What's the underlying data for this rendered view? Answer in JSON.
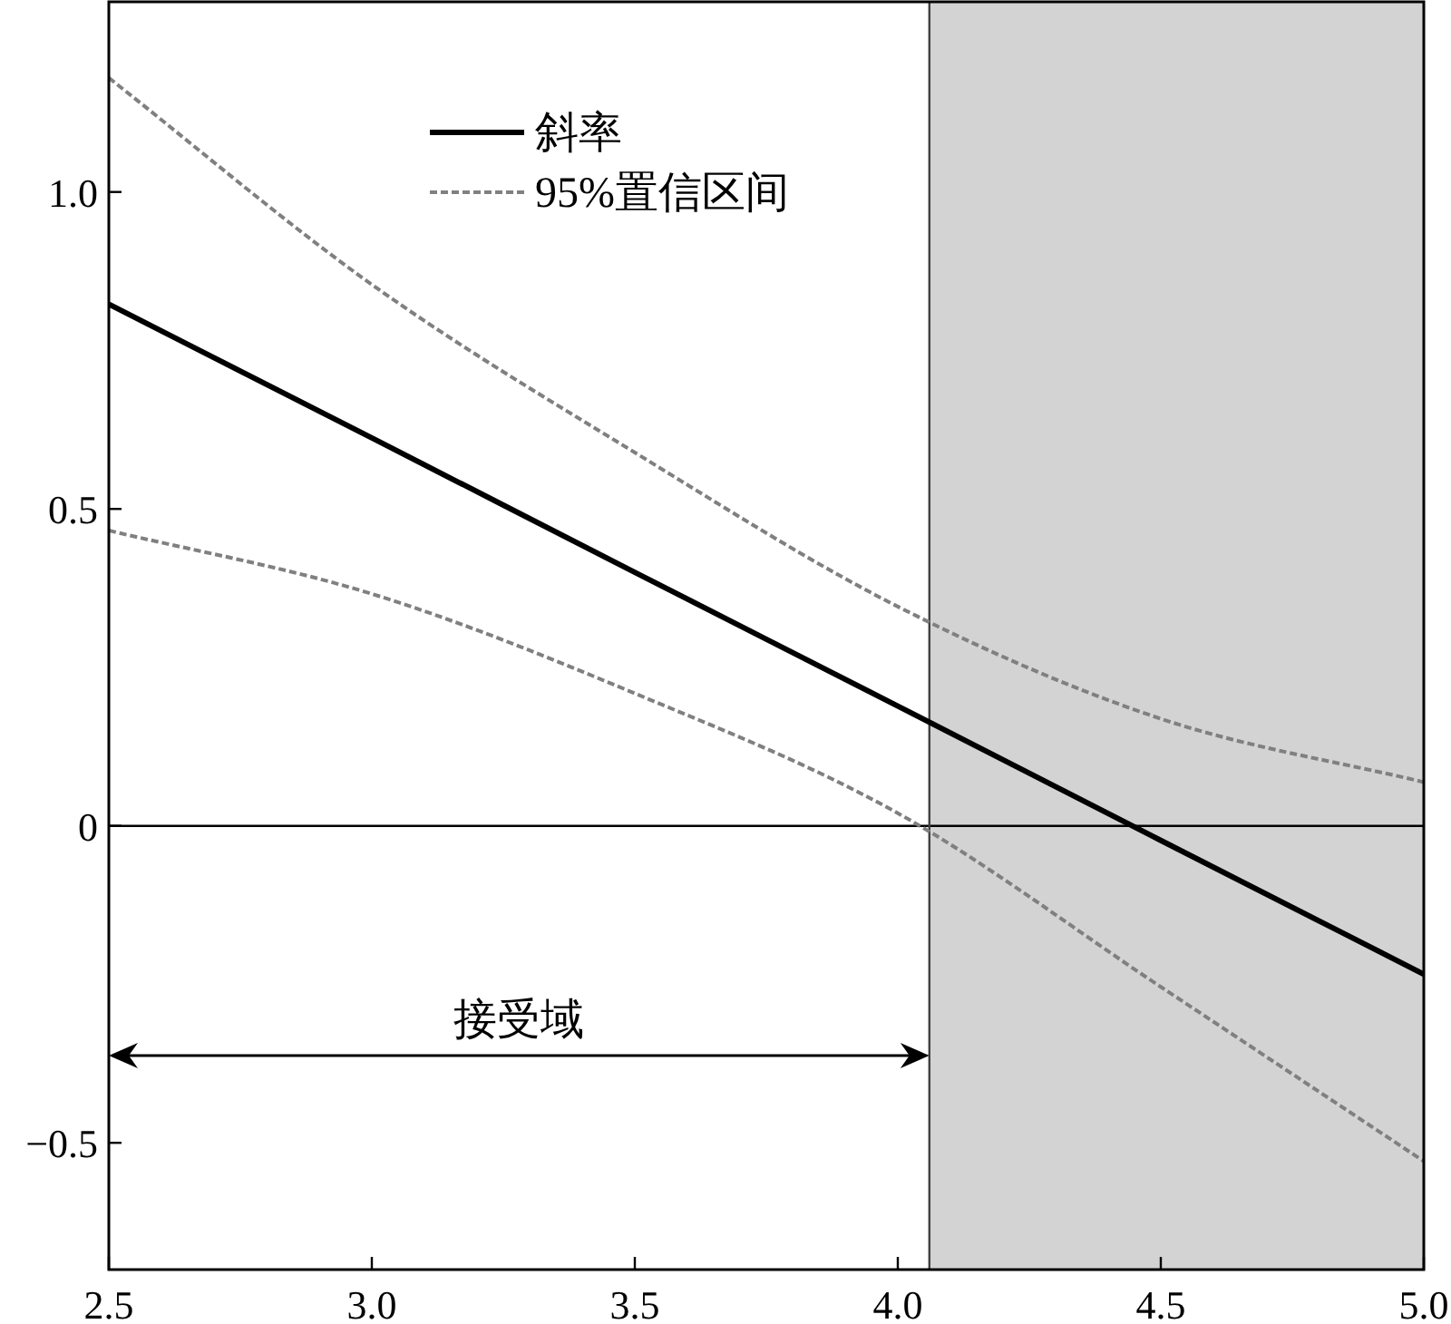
{
  "chart_data": {
    "type": "line",
    "x": [
      2.5,
      3.0,
      3.5,
      4.0,
      4.5,
      5.0
    ],
    "series": [
      {
        "name": "斜率",
        "color": "#000000",
        "line_style": "solid",
        "values": [
          0.823,
          0.612,
          0.4,
          0.189,
          -0.023,
          -0.234
        ]
      },
      {
        "name": "95%置信区间",
        "color": "#808080",
        "line_style": "dashed",
        "values": [
          1.18,
          0.854,
          0.589,
          0.346,
          0.169,
          0.069
        ]
      },
      {
        "color": "#808080",
        "line_style": "dashed",
        "values": [
          0.466,
          0.366,
          0.209,
          0.02,
          -0.254,
          -0.529
        ]
      }
    ],
    "xlim": [
      2.5,
      5.0
    ],
    "ylim": [
      -0.7,
      1.3
    ],
    "xticks": [
      2.5,
      {
        "value": 3.0,
        "label": "3.0"
      },
      3.5,
      {
        "value": 4.0,
        "label": "4.0"
      },
      4.5,
      {
        "value": 5.0,
        "label": "5.0"
      }
    ],
    "yticks": [
      {
        "value": -0.5,
        "label": "−0.5"
      },
      0,
      0.5,
      {
        "value": 1.0,
        "label": "1.0"
      }
    ],
    "ref_lines": [
      {
        "axis": "y",
        "value": 0,
        "color": "#000000"
      },
      {
        "axis": "x",
        "value": 4.06,
        "color": "#404040"
      }
    ],
    "bands": [
      {
        "axis": "x",
        "from": 4.06,
        "to": 5.0,
        "color": "#d3d3d3"
      }
    ],
    "annotations": [
      "接受域"
    ],
    "legend": "top",
    "grid": false,
    "marker": "none"
  }
}
